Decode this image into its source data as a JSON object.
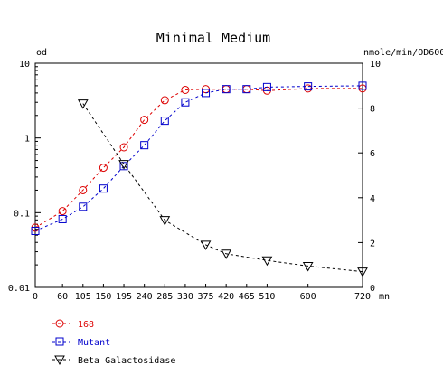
{
  "chart_data": {
    "type": "line",
    "title": "Minimal Medium",
    "xlabel": "mn",
    "ylabel": "od",
    "y2label": "nmole/min/OD600",
    "x_ticks": [
      0,
      60,
      105,
      150,
      195,
      240,
      285,
      330,
      375,
      420,
      465,
      510,
      600,
      720
    ],
    "xlim": [
      0,
      720
    ],
    "y_scale": "log",
    "ylim": [
      0.01,
      10
    ],
    "y_ticks": [
      "0.01",
      "0.1",
      "1",
      "10"
    ],
    "y2lim": [
      0,
      10
    ],
    "y2_ticks": [
      "0",
      "2",
      "4",
      "6",
      "8",
      "10"
    ],
    "grid": false,
    "legend_position": "bottom-left",
    "series": [
      {
        "name": "168",
        "axis": "left",
        "marker": "circle",
        "color": "#dd0000",
        "x": [
          0,
          60,
          105,
          150,
          195,
          240,
          285,
          330,
          375,
          420,
          465,
          510,
          600,
          720
        ],
        "y": [
          0.063,
          0.105,
          0.2,
          0.4,
          0.75,
          1.75,
          3.2,
          4.4,
          4.5,
          4.5,
          4.5,
          4.3,
          4.6,
          4.6
        ]
      },
      {
        "name": "Mutant",
        "axis": "left",
        "marker": "square",
        "color": "#0000cc",
        "x": [
          0,
          60,
          105,
          150,
          195,
          240,
          285,
          330,
          375,
          420,
          465,
          510,
          600,
          720
        ],
        "y": [
          0.057,
          0.082,
          0.12,
          0.21,
          0.42,
          0.8,
          1.7,
          3.0,
          4.0,
          4.5,
          4.5,
          4.8,
          4.9,
          5.0
        ]
      },
      {
        "name": "Beta Galactosidase",
        "axis": "right",
        "marker": "triangle-down",
        "color": "#000000",
        "x": [
          105,
          195,
          285,
          375,
          420,
          510,
          600,
          720
        ],
        "y": [
          8.2,
          5.5,
          3.0,
          1.9,
          1.5,
          1.2,
          0.95,
          0.7
        ]
      }
    ]
  }
}
